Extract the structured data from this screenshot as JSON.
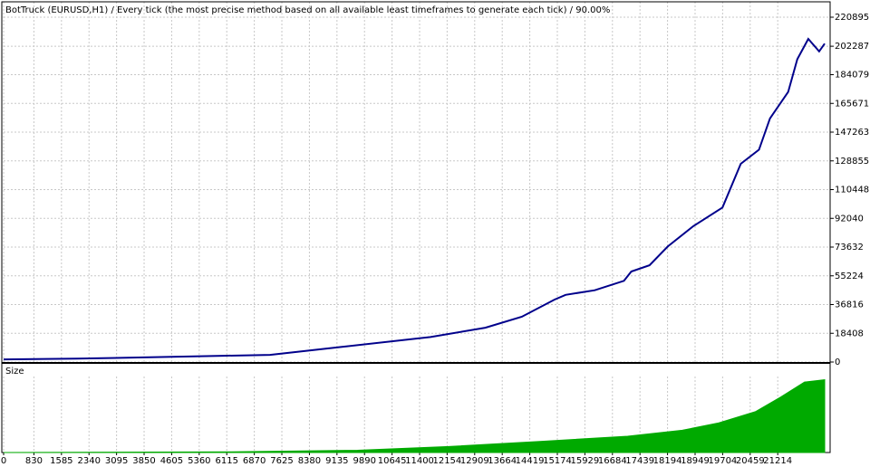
{
  "chart_data": [
    {
      "type": "line",
      "title": "BotTruck (EURUSD,H1) / Every tick (the most precise method based on all available least timeframes to generate each tick) / 90.00%",
      "x": [
        0,
        2000,
        4000,
        6000,
        7300,
        9300,
        11700,
        13200,
        14200,
        15100,
        15400,
        16200,
        17000,
        17200,
        17700,
        18200,
        18900,
        19700,
        20200,
        20700,
        21000,
        21500,
        21750,
        22050,
        22350,
        22500
      ],
      "values": [
        1700,
        2200,
        3000,
        4000,
        4600,
        9800,
        16000,
        22000,
        29000,
        40000,
        43000,
        46000,
        52000,
        58000,
        62000,
        74000,
        87000,
        99000,
        127000,
        136000,
        156000,
        173000,
        194000,
        207000,
        199000,
        204000
      ],
      "color": "#00008b",
      "xlim": [
        0,
        22600
      ],
      "ylim": [
        0,
        229600
      ],
      "yticks": [
        0,
        18408,
        36816,
        55224,
        73632,
        92040,
        110448,
        128855,
        147263,
        165671,
        184079,
        202287,
        220895
      ],
      "grid": true
    },
    {
      "type": "area",
      "label": "Size",
      "x": [
        0,
        6250,
        9700,
        12200,
        14700,
        17100,
        18600,
        19600,
        20600,
        21300,
        21950,
        22500
      ],
      "values": [
        0,
        1,
        3,
        8,
        15,
        22,
        30,
        40,
        55,
        75,
        95,
        98
      ],
      "color": "#00aa00",
      "xlim": [
        0,
        22600
      ],
      "ylim": [
        0,
        100
      ],
      "xticks": [
        0,
        830,
        1585,
        2340,
        3095,
        3850,
        4605,
        5360,
        6115,
        6870,
        7625,
        8380,
        9135,
        9890,
        10645,
        11400,
        12154,
        12909,
        13664,
        14419,
        15174,
        15929,
        16684,
        17439,
        18194,
        18949,
        19704,
        20459,
        21214
      ],
      "grid": true
    }
  ]
}
